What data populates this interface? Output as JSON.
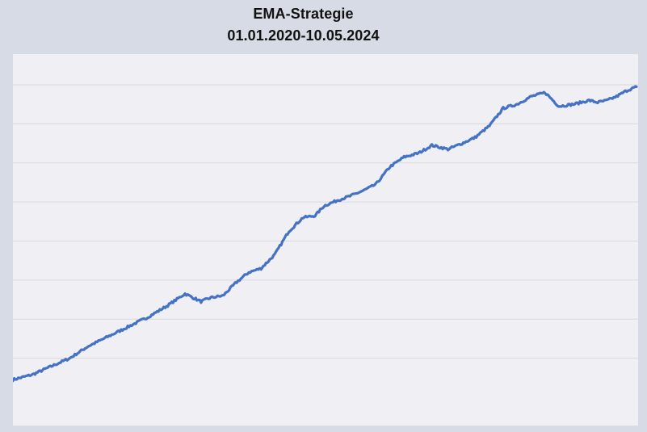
{
  "chart": {
    "title": "EMA-Strategie",
    "subtitle": "01.01.2020-10.05.2024"
  },
  "chart_data": {
    "type": "line",
    "title": "EMA-Strategie",
    "subtitle": "01.01.2020-10.05.2024",
    "xlabel": "",
    "ylabel": "",
    "x_range": [
      "2020-01-01",
      "2024-05-10"
    ],
    "ylim": [
      0,
      8
    ],
    "y_axis_labels_visible": false,
    "grid": "horizontal",
    "gridline_count": 8,
    "legend": "none",
    "series": [
      {
        "color": "#4472c4",
        "x": [
          "2020-01-01",
          "2020-02-20",
          "2020-04-05",
          "2020-05-25",
          "2020-07-10",
          "2020-08-30",
          "2020-10-20",
          "2020-12-10",
          "2021-01-30",
          "2021-03-15",
          "2021-04-25",
          "2021-05-20",
          "2021-06-20",
          "2021-07-25",
          "2021-08-25",
          "2021-09-25",
          "2021-10-30",
          "2021-12-05",
          "2022-01-10",
          "2022-02-10",
          "2022-03-05",
          "2022-04-10",
          "2022-05-10",
          "2022-06-15",
          "2022-07-15",
          "2022-08-20",
          "2022-09-25",
          "2022-11-01",
          "2022-12-05",
          "2023-01-15",
          "2023-02-20",
          "2023-03-25",
          "2023-05-01",
          "2023-06-05",
          "2023-07-10",
          "2023-08-15",
          "2023-09-20",
          "2023-10-25",
          "2023-12-01",
          "2024-01-10",
          "2024-02-01",
          "2024-02-25",
          "2024-03-20",
          "2024-04-15",
          "2024-05-10"
        ],
        "values": [
          0.45,
          0.58,
          0.78,
          1.0,
          1.3,
          1.55,
          1.8,
          2.05,
          2.35,
          2.65,
          2.45,
          2.55,
          2.6,
          2.95,
          3.2,
          3.3,
          3.65,
          4.25,
          4.6,
          4.65,
          4.9,
          5.05,
          5.15,
          5.3,
          5.45,
          5.9,
          6.15,
          6.25,
          6.45,
          6.35,
          6.5,
          6.65,
          6.95,
          7.4,
          7.5,
          7.7,
          7.8,
          7.45,
          7.5,
          7.6,
          7.55,
          7.6,
          7.7,
          7.85,
          7.95
        ]
      }
    ]
  }
}
